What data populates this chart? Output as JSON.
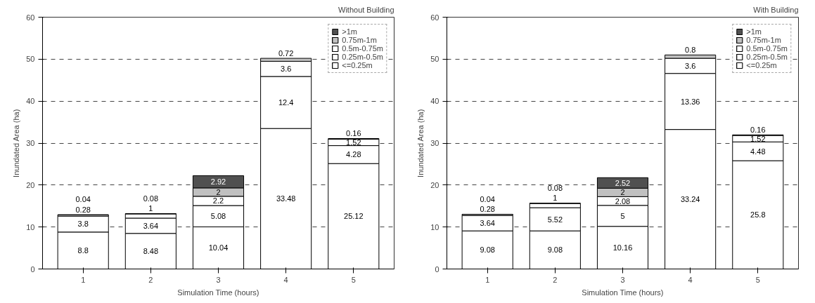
{
  "chart_data": [
    {
      "type": "bar",
      "title": "Without Building",
      "xlabel": "Simulation Time (hours)",
      "ylabel": "Inundated Area (ha)",
      "categories": [
        "1",
        "2",
        "3",
        "4",
        "5"
      ],
      "stacked": true,
      "ylim": [
        0,
        60
      ],
      "yticks": [
        0,
        10,
        20,
        30,
        40,
        50,
        60
      ],
      "grid": "y",
      "legend": "top right",
      "data_labels": true,
      "series": [
        {
          "name": "<=0.25m",
          "color": "#ffffff",
          "values": [
            8.8,
            8.48,
            10.04,
            33.48,
            25.12
          ]
        },
        {
          "name": "0.25m-0.5m",
          "color": "#ffffff",
          "values": [
            3.8,
            3.64,
            5.08,
            12.4,
            4.28
          ]
        },
        {
          "name": "0.5m-0.75m",
          "color": "#ffffff",
          "values": [
            0.28,
            1,
            2.2,
            3.6,
            1.52
          ]
        },
        {
          "name": "0.75m-1m",
          "color": "#c0c0c0",
          "values": [
            0.04,
            0.08,
            2,
            0.72,
            0.16
          ]
        },
        {
          "name": ">1m",
          "color": "#505050",
          "values": [
            null,
            null,
            2.92,
            null,
            null
          ]
        }
      ]
    },
    {
      "type": "bar",
      "title": "With Building",
      "xlabel": "Simulation Time (hours)",
      "ylabel": "Inundated Area (ha)",
      "categories": [
        "1",
        "2",
        "3",
        "4",
        "5"
      ],
      "stacked": true,
      "ylim": [
        0,
        60
      ],
      "yticks": [
        0,
        10,
        20,
        30,
        40,
        50,
        60
      ],
      "grid": "y",
      "legend": "top right",
      "data_labels": true,
      "series": [
        {
          "name": "<=0.25m",
          "color": "#ffffff",
          "values": [
            9.08,
            9.08,
            10.16,
            33.24,
            25.8
          ]
        },
        {
          "name": "0.25m-0.5m",
          "color": "#ffffff",
          "values": [
            3.64,
            5.52,
            5,
            13.36,
            4.48
          ]
        },
        {
          "name": "0.5m-0.75m",
          "color": "#ffffff",
          "values": [
            0.28,
            1,
            2.08,
            3.6,
            1.52
          ]
        },
        {
          "name": "0.75m-1m",
          "color": "#c0c0c0",
          "values": [
            0.04,
            0.08,
            2,
            0.8,
            0.16
          ]
        },
        {
          "name": ">1m",
          "color": "#505050",
          "values": [
            null,
            null,
            2.52,
            null,
            null
          ]
        }
      ]
    }
  ]
}
